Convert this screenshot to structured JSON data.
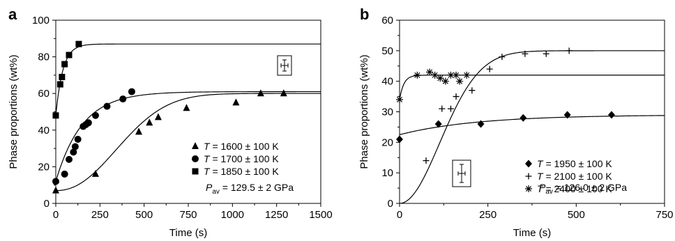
{
  "chart_data": [
    {
      "panel_label": "a",
      "type": "scatter",
      "xlabel": "Time (s)",
      "ylabel": "Phase proportions (wt%)",
      "xlim": [
        0,
        1500
      ],
      "ylim": [
        0,
        100
      ],
      "xticks": [
        0,
        250,
        500,
        750,
        1000,
        1250,
        1500
      ],
      "yticks": [
        0,
        20,
        40,
        60,
        80,
        100
      ],
      "series": [
        {
          "name": "T = 1600 ± 100 K",
          "legend_parts": [
            "T",
            " = 1600 ± 100 K"
          ],
          "marker": "triangle",
          "points": [
            [
              0,
              7
            ],
            [
              225,
              16
            ],
            [
              470,
              39
            ],
            [
              530,
              44
            ],
            [
              580,
              47
            ],
            [
              740,
              52
            ],
            [
              1020,
              55
            ],
            [
              1160,
              60
            ],
            [
              1290,
              60
            ]
          ],
          "fit": {
            "form": "sigmoid",
            "base": 7,
            "plateau": 60,
            "scale": 450,
            "power": 2.2
          }
        },
        {
          "name": "T = 1700 ± 100 K",
          "legend_parts": [
            "T",
            " = 1700 ± 100 K"
          ],
          "marker": "circle",
          "points": [
            [
              0,
              12
            ],
            [
              50,
              16
            ],
            [
              75,
              24
            ],
            [
              100,
              28
            ],
            [
              110,
              31
            ],
            [
              125,
              35
            ],
            [
              155,
              42
            ],
            [
              170,
              43
            ],
            [
              185,
              44
            ],
            [
              225,
              48
            ],
            [
              290,
              53
            ],
            [
              380,
              57
            ],
            [
              430,
              61
            ]
          ],
          "fit": {
            "form": "exp",
            "base": 12,
            "plateau": 61,
            "tau": 150
          }
        },
        {
          "name": "T = 1850 ± 100 K",
          "legend_parts": [
            "T",
            " = 1850 ± 100 K"
          ],
          "marker": "square",
          "points": [
            [
              0,
              48
            ],
            [
              25,
              65
            ],
            [
              35,
              69
            ],
            [
              50,
              76
            ],
            [
              75,
              81
            ],
            [
              130,
              87
            ]
          ],
          "fit": {
            "form": "exp",
            "base": 48,
            "plateau": 87,
            "tau": 40
          }
        }
      ],
      "pressure_parts": [
        "P",
        "av",
        " = 129.5 ± 2 GPa"
      ],
      "error_bar_inset": true
    },
    {
      "panel_label": "b",
      "type": "scatter",
      "xlabel": "Time (s)",
      "ylabel": "Phase proportions (wt%)",
      "xlim": [
        0,
        750
      ],
      "ylim": [
        0,
        60
      ],
      "xticks": [
        0,
        250,
        500,
        750
      ],
      "yticks": [
        0,
        10,
        20,
        30,
        40,
        50,
        60
      ],
      "series": [
        {
          "name": "T = 1950 ± 100 K",
          "legend_parts": [
            "T",
            " = 1950 ± 100 K"
          ],
          "marker": "diamond",
          "points": [
            [
              0,
              21
            ],
            [
              110,
              26
            ],
            [
              230,
              26
            ],
            [
              350,
              28
            ],
            [
              475,
              29
            ],
            [
              600,
              29
            ]
          ],
          "fit": {
            "form": "exp",
            "base": 22.5,
            "plateau": 29,
            "tau": 220
          }
        },
        {
          "name": "T = 2100 ± 100 K",
          "legend_parts": [
            "T",
            " = 2100 ± 100 K"
          ],
          "marker": "plus",
          "points": [
            [
              75,
              14
            ],
            [
              120,
              31
            ],
            [
              145,
              31
            ],
            [
              160,
              35
            ],
            [
              205,
              37
            ],
            [
              255,
              44
            ],
            [
              290,
              48
            ],
            [
              355,
              49
            ],
            [
              415,
              49
            ],
            [
              480,
              50
            ]
          ],
          "fit": {
            "form": "sigmoid",
            "base": 0,
            "plateau": 50,
            "scale": 160,
            "power": 2.0
          }
        },
        {
          "name": "T = 2400 ± 100 K",
          "legend_parts": [
            "T",
            " = 2400 ± 100 K"
          ],
          "marker": "asterisk",
          "points": [
            [
              0,
              34
            ],
            [
              50,
              42
            ],
            [
              85,
              43
            ],
            [
              100,
              42
            ],
            [
              115,
              41
            ],
            [
              130,
              40
            ],
            [
              145,
              42
            ],
            [
              160,
              42
            ],
            [
              170,
              40
            ],
            [
              190,
              42
            ]
          ],
          "fit": {
            "form": "exp",
            "base": 34,
            "plateau": 42,
            "tau": 12
          }
        }
      ],
      "pressure_parts": [
        "P",
        "av",
        " = 126.0 ± 2 GPa"
      ],
      "error_bar_inset": true
    }
  ]
}
